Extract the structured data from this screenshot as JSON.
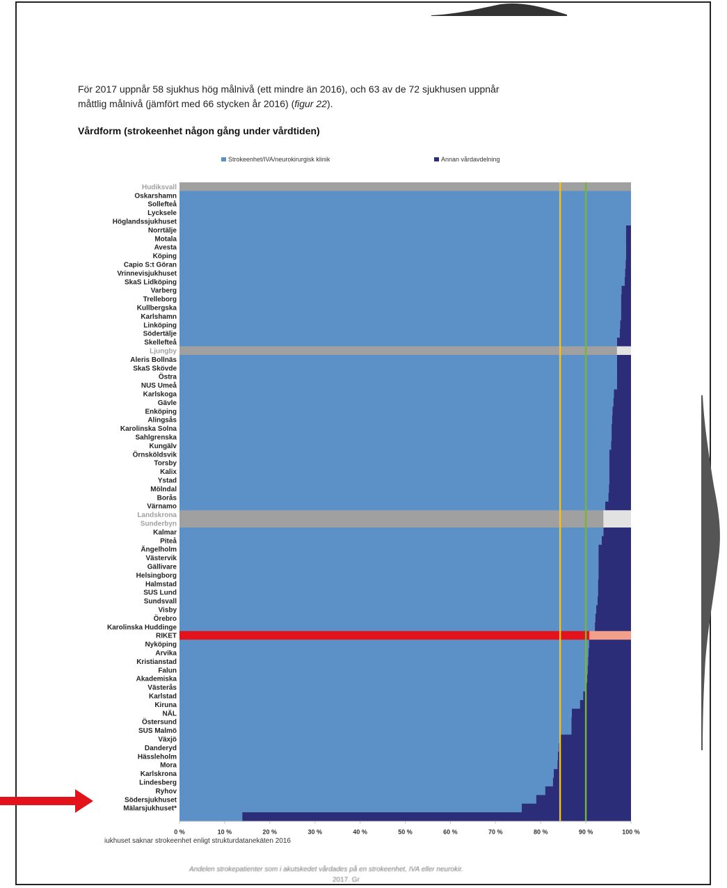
{
  "intro": {
    "line1": "För 2017 uppnår 58 sjukhus hög målnivå (ett mindre än 2016), och 63 av de 72 sjukhusen uppnår",
    "line2a": "måttlig målnivå (jämfört med 66 stycken år 2016) (",
    "line2b": "figur 22",
    "line2c": ")."
  },
  "heading": "Vårdform (strokeenhet någon gång under vårdtiden)",
  "footnote": "iukhuset saknar strokeenhet enligt strukturdatanekäten 2016",
  "bottom_text": {
    "line1": "Andelen strokepatienter som i akutskedet vårdades på en strokeenhet, IVA eller neurokir.",
    "line2": "2017. Gr"
  },
  "colors": {
    "stroke": "#5b91c6",
    "annan": "#2c2d78",
    "grey": "#a0a0a0",
    "grey_light": "#e2e2e2",
    "riket": "#e3131c",
    "riket_light": "#f2a08a",
    "target_high": "#f3c21b",
    "target_moderate": "#78b33a",
    "arrow": "#e3131c"
  },
  "chart_data": {
    "type": "bar",
    "orientation": "horizontal",
    "stacked": true,
    "legend_position": "top",
    "series": [
      {
        "name": "Strokeenhet/IVA/neurokirurgisk klinik",
        "color": "#5b91c6"
      },
      {
        "name": "Annan vårdavdelning",
        "color": "#2c2d78"
      }
    ],
    "xlim": [
      0,
      100
    ],
    "xticks": [
      "0 %",
      "10 %",
      "20 %",
      "30 %",
      "40 %",
      "50 %",
      "60 %",
      "70 %",
      "80 %",
      "90 %",
      "100 %"
    ],
    "reference_lines": [
      84.3,
      90
    ],
    "categories": [
      {
        "name": "Hudiksvall",
        "stroke": 100,
        "style": "grey"
      },
      {
        "name": "Oskarshamn",
        "stroke": 100
      },
      {
        "name": "Sollefteå",
        "stroke": 100
      },
      {
        "name": "Lycksele",
        "stroke": 100
      },
      {
        "name": "Höglandssjukhuset",
        "stroke": 100
      },
      {
        "name": "Norrtälje",
        "stroke": 98.9
      },
      {
        "name": "Motala",
        "stroke": 98.9
      },
      {
        "name": "Avesta",
        "stroke": 98.9
      },
      {
        "name": "Köping",
        "stroke": 98.9
      },
      {
        "name": "Capio S:t Göran",
        "stroke": 98.8
      },
      {
        "name": "Vrinnevisjukhuset",
        "stroke": 98.7
      },
      {
        "name": "SkaS Lidköping",
        "stroke": 98.6
      },
      {
        "name": "Varberg",
        "stroke": 97.9
      },
      {
        "name": "Trelleborg",
        "stroke": 97.8
      },
      {
        "name": "Kullbergska",
        "stroke": 97.8
      },
      {
        "name": "Karlshamn",
        "stroke": 97.8
      },
      {
        "name": "Linköping",
        "stroke": 97.6
      },
      {
        "name": "Södertälje",
        "stroke": 97.5
      },
      {
        "name": "Skellefteå",
        "stroke": 96.9
      },
      {
        "name": "Ljungby",
        "stroke": 96.9,
        "style": "grey"
      },
      {
        "name": "Aleris Bollnäs",
        "stroke": 96.9
      },
      {
        "name": "SkaS Skövde",
        "stroke": 96.9
      },
      {
        "name": "Östra",
        "stroke": 96.9
      },
      {
        "name": "NUS Umeå",
        "stroke": 96.9
      },
      {
        "name": "Karlskoga",
        "stroke": 96.2
      },
      {
        "name": "Gävle",
        "stroke": 96.1
      },
      {
        "name": "Enköping",
        "stroke": 95.9
      },
      {
        "name": "Alingsås",
        "stroke": 95.8
      },
      {
        "name": "Karolinska Solna",
        "stroke": 95.7
      },
      {
        "name": "Sahlgrenska",
        "stroke": 95.7
      },
      {
        "name": "Kungälv",
        "stroke": 95.6
      },
      {
        "name": "Örnsköldsvik",
        "stroke": 95.2
      },
      {
        "name": "Torsby",
        "stroke": 95.2
      },
      {
        "name": "Kalix",
        "stroke": 95.2
      },
      {
        "name": "Ystad",
        "stroke": 95.2
      },
      {
        "name": "Mölndal",
        "stroke": 95.1
      },
      {
        "name": "Borås",
        "stroke": 95
      },
      {
        "name": "Värnamo",
        "stroke": 94.3
      },
      {
        "name": "Landskrona",
        "stroke": 93.9,
        "style": "grey"
      },
      {
        "name": "Sunderbyn",
        "stroke": 93.9,
        "style": "grey"
      },
      {
        "name": "Kalmar",
        "stroke": 93.9
      },
      {
        "name": "Piteå",
        "stroke": 93.5
      },
      {
        "name": "Ängelholm",
        "stroke": 92.8
      },
      {
        "name": "Västervik",
        "stroke": 92.8
      },
      {
        "name": "Gällivare",
        "stroke": 92.8
      },
      {
        "name": "Helsingborg",
        "stroke": 92.8
      },
      {
        "name": "Halmstad",
        "stroke": 92.7
      },
      {
        "name": "SUS Lund",
        "stroke": 92.7
      },
      {
        "name": "Sundsvall",
        "stroke": 92.6
      },
      {
        "name": "Visby",
        "stroke": 92.3
      },
      {
        "name": "Örebro",
        "stroke": 92.1
      },
      {
        "name": "Karolinska Huddinge",
        "stroke": 92
      },
      {
        "name": "RIKET",
        "stroke": 90.8,
        "style": "riket"
      },
      {
        "name": "Nyköping",
        "stroke": 90.7
      },
      {
        "name": "Arvika",
        "stroke": 90.6
      },
      {
        "name": "Kristianstad",
        "stroke": 90.5
      },
      {
        "name": "Falun",
        "stroke": 90.4
      },
      {
        "name": "Akademiska",
        "stroke": 90.3
      },
      {
        "name": "Västerås",
        "stroke": 90.1
      },
      {
        "name": "Karlstad",
        "stroke": 89.4
      },
      {
        "name": "Kiruna",
        "stroke": 88.7
      },
      {
        "name": "NÄL",
        "stroke": 86.9
      },
      {
        "name": "Östersund",
        "stroke": 86.8
      },
      {
        "name": "SUS Malmö",
        "stroke": 86.8
      },
      {
        "name": "Växjö",
        "stroke": 84.3
      },
      {
        "name": "Danderyd",
        "stroke": 84
      },
      {
        "name": "Hässleholm",
        "stroke": 83.8
      },
      {
        "name": "Mora",
        "stroke": 83.7
      },
      {
        "name": "Karlskrona",
        "stroke": 82.9
      },
      {
        "name": "Lindesberg",
        "stroke": 82.7
      },
      {
        "name": "Ryhov",
        "stroke": 81
      },
      {
        "name": "Södersjukhuset",
        "stroke": 79
      },
      {
        "name": "Mälarsjukhuset*",
        "stroke": 75.8
      },
      {
        "name": "",
        "stroke": 13.9
      }
    ]
  }
}
